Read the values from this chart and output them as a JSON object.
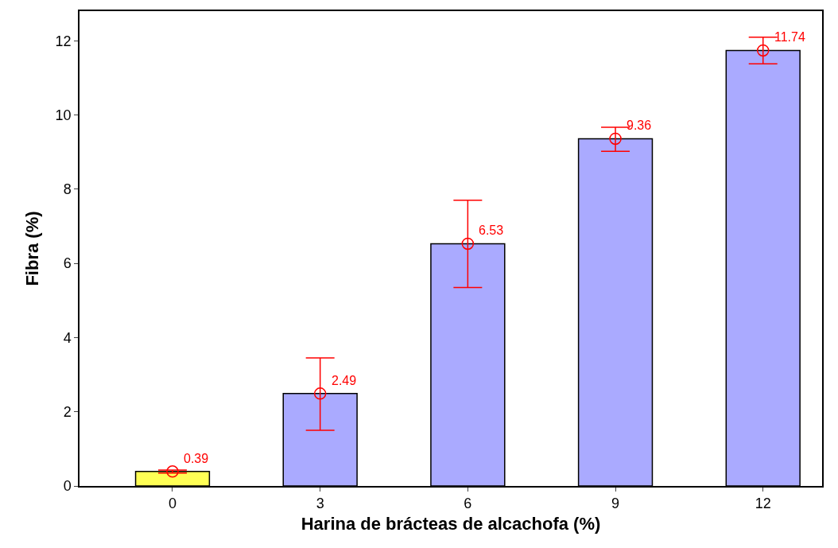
{
  "chart_data": {
    "type": "bar",
    "xlabel": "Harina de brácteas de alcachofa (%)",
    "ylabel": "Fibra (%)",
    "categories": [
      "0",
      "3",
      "6",
      "9",
      "12"
    ],
    "series": [
      {
        "colors": [
          "#ffff55",
          "#aaaaff",
          "#aaaaff",
          "#aaaaff",
          "#aaaaff"
        ],
        "values": [
          0.39,
          2.49,
          6.53,
          9.36,
          11.74
        ]
      },
      {
        "type": "scatter",
        "color": "#ff0000",
        "marker": "circle",
        "values": [
          0.39,
          2.49,
          6.53,
          9.36,
          11.74
        ],
        "value_labels": [
          "0.39",
          "2.49",
          "6.53",
          "9.36",
          "11.74"
        ],
        "errors": [
          [
            0.35,
            0.43
          ],
          [
            1.5,
            3.45
          ],
          [
            5.35,
            7.7
          ],
          [
            9.02,
            9.67
          ],
          [
            11.38,
            12.1
          ]
        ]
      }
    ],
    "ylim": [
      0,
      12.8
    ],
    "yticks": [
      0,
      2,
      4,
      6,
      8,
      10,
      12
    ]
  }
}
